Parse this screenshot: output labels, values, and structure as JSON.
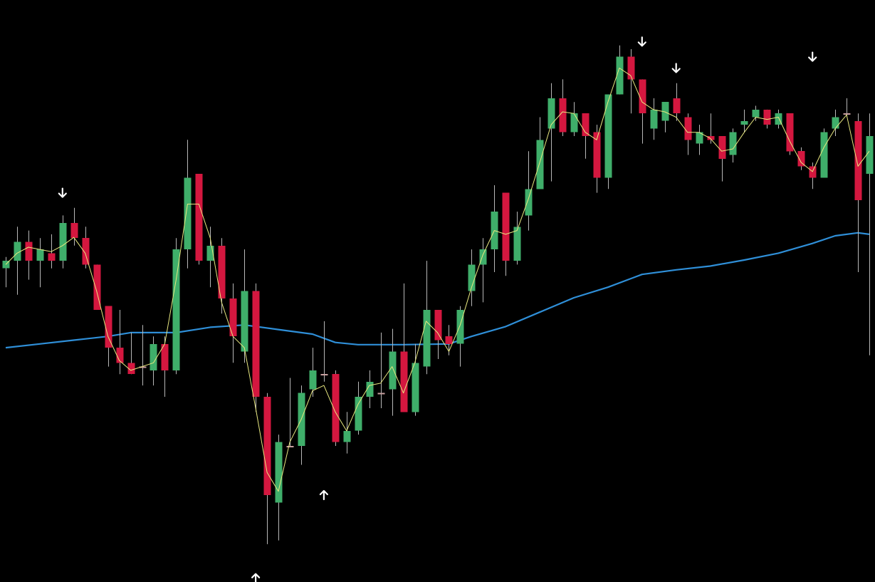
{
  "chart_data": {
    "type": "candlestick",
    "ylim": [
      75,
      152
    ],
    "xlim": [
      0.5,
      77.5
    ],
    "grid": false,
    "colors": {
      "background": "#000000",
      "bullish": "#3fae6a",
      "bearish": "#d4173f",
      "doji": "#c9a0a0",
      "wick": "#b8b8b8",
      "slow_ma": "#2f8fd8",
      "fast_ma": "#e8e880",
      "signal_arrow": "#ffffff"
    },
    "series": [
      {
        "name": "",
        "kind": "ohlc",
        "candles": [
          {
            "x": 1,
            "o": 116.5,
            "h": 118.0,
            "l": 114.0,
            "c": 117.5
          },
          {
            "x": 2,
            "o": 117.5,
            "h": 122.0,
            "l": 113.0,
            "c": 120.0
          },
          {
            "x": 3,
            "o": 120.0,
            "h": 121.5,
            "l": 115.0,
            "c": 117.5
          },
          {
            "x": 4,
            "o": 117.5,
            "h": 120.5,
            "l": 114.0,
            "c": 119.0
          },
          {
            "x": 5,
            "o": 118.5,
            "h": 121.0,
            "l": 116.5,
            "c": 117.5
          },
          {
            "x": 6,
            "o": 117.5,
            "h": 123.5,
            "l": 116.5,
            "c": 122.5
          },
          {
            "x": 7,
            "o": 122.5,
            "h": 124.5,
            "l": 119.5,
            "c": 120.5
          },
          {
            "x": 8,
            "o": 120.5,
            "h": 122.0,
            "l": 116.5,
            "c": 117.0
          },
          {
            "x": 9,
            "o": 117.0,
            "h": 117.0,
            "l": 111.5,
            "c": 111.0
          },
          {
            "x": 10,
            "o": 111.5,
            "h": 111.5,
            "l": 103.5,
            "c": 106.0
          },
          {
            "x": 11,
            "o": 106.0,
            "h": 111.0,
            "l": 102.5,
            "c": 104.0
          },
          {
            "x": 12,
            "o": 104.0,
            "h": 108.0,
            "l": 102.5,
            "c": 102.5
          },
          {
            "x": 13,
            "o": 103.5,
            "h": 109.0,
            "l": 101.0,
            "c": 103.5
          },
          {
            "x": 14,
            "o": 103.0,
            "h": 107.5,
            "l": 101.0,
            "c": 106.5
          },
          {
            "x": 15,
            "o": 106.5,
            "h": 107.5,
            "l": 99.5,
            "c": 103.0
          },
          {
            "x": 16,
            "o": 103.0,
            "h": 120.5,
            "l": 102.5,
            "c": 119.0
          },
          {
            "x": 17,
            "o": 119.0,
            "h": 133.5,
            "l": 116.5,
            "c": 128.5
          },
          {
            "x": 18,
            "o": 129.0,
            "h": 129.0,
            "l": 117.0,
            "c": 117.5
          },
          {
            "x": 19,
            "o": 117.5,
            "h": 122.0,
            "l": 114.0,
            "c": 119.5
          },
          {
            "x": 20,
            "o": 119.5,
            "h": 120.5,
            "l": 110.5,
            "c": 112.5
          },
          {
            "x": 21,
            "o": 112.5,
            "h": 114.5,
            "l": 104.0,
            "c": 107.5
          },
          {
            "x": 22,
            "o": 105.5,
            "h": 119.0,
            "l": 104.0,
            "c": 113.5
          },
          {
            "x": 23,
            "o": 113.5,
            "h": 114.5,
            "l": 97.5,
            "c": 99.5
          },
          {
            "x": 24,
            "o": 99.5,
            "h": 100.0,
            "l": 80.0,
            "c": 86.5
          },
          {
            "x": 25,
            "o": 85.5,
            "h": 94.5,
            "l": 80.5,
            "c": 93.5
          },
          {
            "x": 26,
            "o": 93.0,
            "h": 102.0,
            "l": 93.0,
            "c": 93.0
          },
          {
            "x": 27,
            "o": 93.0,
            "h": 101.0,
            "l": 90.5,
            "c": 100.0
          },
          {
            "x": 28,
            "o": 100.5,
            "h": 106.0,
            "l": 99.5,
            "c": 103.0
          },
          {
            "x": 29,
            "o": 102.5,
            "h": 109.5,
            "l": 101.5,
            "c": 102.5
          },
          {
            "x": 30,
            "o": 102.5,
            "h": 103.0,
            "l": 93.0,
            "c": 93.5
          },
          {
            "x": 31,
            "o": 93.5,
            "h": 97.5,
            "l": 92.0,
            "c": 95.0
          },
          {
            "x": 32,
            "o": 95.0,
            "h": 101.5,
            "l": 94.5,
            "c": 99.5
          },
          {
            "x": 33,
            "o": 99.5,
            "h": 103.0,
            "l": 98.0,
            "c": 101.5
          },
          {
            "x": 34,
            "o": 100.0,
            "h": 108.0,
            "l": 98.0,
            "c": 100.0
          },
          {
            "x": 35,
            "o": 100.5,
            "h": 108.5,
            "l": 97.0,
            "c": 105.5
          },
          {
            "x": 36,
            "o": 105.5,
            "h": 114.5,
            "l": 97.5,
            "c": 97.5
          },
          {
            "x": 37,
            "o": 97.5,
            "h": 106.5,
            "l": 97.0,
            "c": 104.0
          },
          {
            "x": 38,
            "o": 103.5,
            "h": 117.5,
            "l": 102.5,
            "c": 111.0
          },
          {
            "x": 39,
            "o": 111.0,
            "h": 111.0,
            "l": 104.5,
            "c": 107.0
          },
          {
            "x": 40,
            "o": 107.5,
            "h": 109.0,
            "l": 105.0,
            "c": 106.5
          },
          {
            "x": 41,
            "o": 106.5,
            "h": 111.5,
            "l": 103.5,
            "c": 111.0
          },
          {
            "x": 42,
            "o": 113.5,
            "h": 119.0,
            "l": 111.5,
            "c": 117.0
          },
          {
            "x": 43,
            "o": 117.0,
            "h": 120.5,
            "l": 112.0,
            "c": 119.0
          },
          {
            "x": 44,
            "o": 119.0,
            "h": 127.5,
            "l": 116.0,
            "c": 124.0
          },
          {
            "x": 45,
            "o": 126.5,
            "h": 126.5,
            "l": 115.5,
            "c": 117.5
          },
          {
            "x": 46,
            "o": 117.5,
            "h": 124.0,
            "l": 117.0,
            "c": 122.0
          },
          {
            "x": 47,
            "o": 123.5,
            "h": 132.0,
            "l": 121.5,
            "c": 127.0
          },
          {
            "x": 48,
            "o": 127.0,
            "h": 136.5,
            "l": 127.0,
            "c": 133.5
          },
          {
            "x": 49,
            "o": 135.0,
            "h": 141.0,
            "l": 128.0,
            "c": 139.0
          },
          {
            "x": 50,
            "o": 139.0,
            "h": 141.5,
            "l": 134.0,
            "c": 134.5
          },
          {
            "x": 51,
            "o": 134.5,
            "h": 138.5,
            "l": 134.0,
            "c": 137.0
          },
          {
            "x": 52,
            "o": 137.0,
            "h": 137.0,
            "l": 131.0,
            "c": 134.0
          },
          {
            "x": 53,
            "o": 134.5,
            "h": 135.5,
            "l": 126.5,
            "c": 128.5
          },
          {
            "x": 54,
            "o": 128.5,
            "h": 139.5,
            "l": 127.0,
            "c": 139.5
          },
          {
            "x": 55,
            "o": 139.5,
            "h": 146.0,
            "l": 139.5,
            "c": 144.5
          },
          {
            "x": 56,
            "o": 144.5,
            "h": 145.5,
            "l": 137.0,
            "c": 141.5
          },
          {
            "x": 57,
            "o": 141.5,
            "h": 141.5,
            "l": 133.0,
            "c": 137.0
          },
          {
            "x": 58,
            "o": 135.0,
            "h": 139.0,
            "l": 133.5,
            "c": 137.5
          },
          {
            "x": 59,
            "o": 136.0,
            "h": 138.5,
            "l": 134.5,
            "c": 138.5
          },
          {
            "x": 60,
            "o": 139.0,
            "h": 141.0,
            "l": 136.0,
            "c": 137.0
          },
          {
            "x": 61,
            "o": 136.5,
            "h": 137.0,
            "l": 131.5,
            "c": 133.5
          },
          {
            "x": 62,
            "o": 133.0,
            "h": 135.5,
            "l": 131.5,
            "c": 134.5
          },
          {
            "x": 63,
            "o": 134.0,
            "h": 137.0,
            "l": 133.0,
            "c": 133.5
          },
          {
            "x": 64,
            "o": 134.0,
            "h": 134.0,
            "l": 128.0,
            "c": 131.0
          },
          {
            "x": 65,
            "o": 131.5,
            "h": 135.0,
            "l": 130.5,
            "c": 134.5
          },
          {
            "x": 66,
            "o": 135.5,
            "h": 137.5,
            "l": 134.5,
            "c": 136.0
          },
          {
            "x": 67,
            "o": 136.5,
            "h": 138.0,
            "l": 136.0,
            "c": 137.5
          },
          {
            "x": 68,
            "o": 137.5,
            "h": 137.5,
            "l": 135.0,
            "c": 135.5
          },
          {
            "x": 69,
            "o": 135.5,
            "h": 137.5,
            "l": 135.0,
            "c": 137.0
          },
          {
            "x": 70,
            "o": 137.0,
            "h": 137.0,
            "l": 131.5,
            "c": 132.0
          },
          {
            "x": 71,
            "o": 132.0,
            "h": 132.5,
            "l": 129.5,
            "c": 130.0
          },
          {
            "x": 72,
            "o": 130.0,
            "h": 130.5,
            "l": 127.0,
            "c": 128.5
          },
          {
            "x": 73,
            "o": 128.5,
            "h": 135.0,
            "l": 128.5,
            "c": 134.5
          },
          {
            "x": 74,
            "o": 135.0,
            "h": 137.5,
            "l": 134.0,
            "c": 136.5
          },
          {
            "x": 75,
            "o": 137.0,
            "h": 139.0,
            "l": 136.5,
            "c": 137.0
          },
          {
            "x": 76,
            "o": 136.0,
            "h": 137.0,
            "l": 116.0,
            "c": 125.5
          },
          {
            "x": 77,
            "o": 129.0,
            "h": 137.0,
            "l": 105.0,
            "c": 134.0
          }
        ]
      },
      {
        "name": "",
        "kind": "line",
        "points": [
          [
            1,
            106.0
          ],
          [
            4,
            106.5
          ],
          [
            7,
            107.0
          ],
          [
            10,
            107.5
          ],
          [
            12,
            108.0
          ],
          [
            15,
            108.0
          ],
          [
            16,
            108.0
          ],
          [
            19,
            108.7
          ],
          [
            22,
            109.0
          ],
          [
            25,
            108.4
          ],
          [
            28,
            107.8
          ],
          [
            30,
            106.7
          ],
          [
            32,
            106.4
          ],
          [
            36,
            106.4
          ],
          [
            40,
            106.5
          ],
          [
            42,
            107.5
          ],
          [
            45,
            108.8
          ],
          [
            48,
            110.7
          ],
          [
            51,
            112.6
          ],
          [
            54,
            114.0
          ],
          [
            57,
            115.7
          ],
          [
            60,
            116.3
          ],
          [
            63,
            116.8
          ],
          [
            66,
            117.6
          ],
          [
            69,
            118.5
          ],
          [
            72,
            119.8
          ],
          [
            74,
            120.8
          ],
          [
            76,
            121.2
          ],
          [
            77,
            121.0
          ]
        ]
      },
      {
        "name": "",
        "kind": "line",
        "points": [
          [
            1,
            117.0
          ],
          [
            2,
            118.5
          ],
          [
            3,
            119.3
          ],
          [
            4,
            119.0
          ],
          [
            5,
            118.7
          ],
          [
            6,
            119.5
          ],
          [
            7,
            120.6
          ],
          [
            8,
            118.5
          ],
          [
            9,
            113.5
          ],
          [
            10,
            107.5
          ],
          [
            11,
            104.3
          ],
          [
            12,
            103.0
          ],
          [
            13,
            103.5
          ],
          [
            14,
            104.0
          ],
          [
            15,
            106.5
          ],
          [
            16,
            115.0
          ],
          [
            17,
            125.0
          ],
          [
            18,
            125.0
          ],
          [
            19,
            120.5
          ],
          [
            20,
            112.0
          ],
          [
            21,
            107.5
          ],
          [
            22,
            106.0
          ],
          [
            23,
            98.0
          ],
          [
            24,
            89.5
          ],
          [
            25,
            87.0
          ],
          [
            26,
            93.5
          ],
          [
            27,
            96.5
          ],
          [
            28,
            100.3
          ],
          [
            29,
            101.0
          ],
          [
            30,
            97.5
          ],
          [
            31,
            95.0
          ],
          [
            32,
            98.5
          ],
          [
            33,
            101.0
          ],
          [
            34,
            101.3
          ],
          [
            35,
            103.5
          ],
          [
            36,
            100.0
          ],
          [
            37,
            104.0
          ],
          [
            38,
            109.5
          ],
          [
            39,
            108.0
          ],
          [
            40,
            105.5
          ],
          [
            41,
            109.0
          ],
          [
            42,
            114.0
          ],
          [
            43,
            118.3
          ],
          [
            44,
            121.5
          ],
          [
            45,
            121.0
          ],
          [
            46,
            121.5
          ],
          [
            47,
            125.7
          ],
          [
            48,
            130.5
          ],
          [
            49,
            135.5
          ],
          [
            50,
            137.2
          ],
          [
            51,
            137.0
          ],
          [
            52,
            134.5
          ],
          [
            53,
            133.5
          ],
          [
            54,
            138.5
          ],
          [
            55,
            143.0
          ],
          [
            56,
            142.0
          ],
          [
            57,
            138.5
          ],
          [
            58,
            137.5
          ],
          [
            59,
            137.2
          ],
          [
            60,
            136.5
          ],
          [
            61,
            134.5
          ],
          [
            62,
            134.5
          ],
          [
            63,
            133.7
          ],
          [
            64,
            132.0
          ],
          [
            65,
            132.3
          ],
          [
            66,
            134.5
          ],
          [
            67,
            136.5
          ],
          [
            68,
            136.2
          ],
          [
            69,
            136.5
          ],
          [
            70,
            133.3
          ],
          [
            71,
            130.5
          ],
          [
            72,
            129.3
          ],
          [
            73,
            132.5
          ],
          [
            74,
            135.0
          ],
          [
            75,
            136.8
          ],
          [
            76,
            130.0
          ],
          [
            77,
            132.0
          ]
        ]
      }
    ],
    "signals": [
      {
        "x": 6,
        "direction": "down",
        "y": 126.5
      },
      {
        "x": 23,
        "direction": "up",
        "y": 75.5
      },
      {
        "x": 29,
        "direction": "up",
        "y": 86.5
      },
      {
        "x": 57,
        "direction": "down",
        "y": 146.5
      },
      {
        "x": 60,
        "direction": "down",
        "y": 143.0
      },
      {
        "x": 72,
        "direction": "down",
        "y": 144.5
      }
    ]
  }
}
